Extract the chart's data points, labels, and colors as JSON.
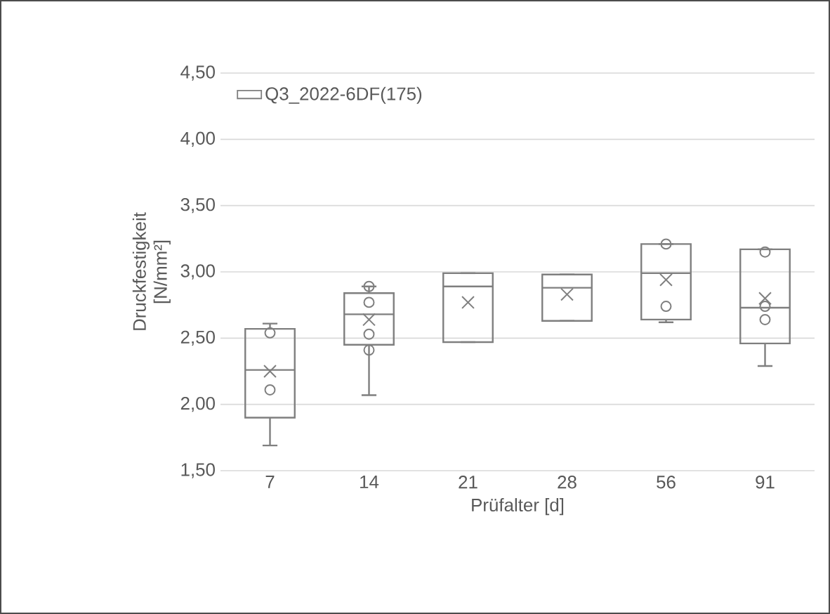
{
  "chart_data": {
    "type": "box",
    "xlabel": "Prüfalter [d]",
    "ylabel": "Druckfestigkeit [N/mm²]",
    "categories": [
      "7",
      "14",
      "21",
      "28",
      "56",
      "91"
    ],
    "series": [
      {
        "name": "Q3_2022-6DF(175)",
        "color": "#7f7f7f",
        "boxes": [
          {
            "low": 1.69,
            "q1": 1.9,
            "median": 2.26,
            "q3": 2.57,
            "high": 2.61,
            "mean": 2.25,
            "outliers": [
              2.54,
              2.11
            ]
          },
          {
            "low": 2.07,
            "q1": 2.45,
            "median": 2.68,
            "q3": 2.84,
            "high": 2.89,
            "mean": 2.64,
            "outliers": [
              2.89,
              2.77,
              2.53,
              2.41
            ]
          },
          {
            "low": 2.47,
            "q1": 2.47,
            "median": 2.89,
            "q3": 2.99,
            "high": 2.99,
            "mean": 2.77
          },
          {
            "low": 2.63,
            "q1": 2.63,
            "median": 2.88,
            "q3": 2.98,
            "high": 2.98,
            "mean": 2.83
          },
          {
            "low": 2.62,
            "q1": 2.64,
            "median": 2.99,
            "q3": 3.21,
            "high": 3.21,
            "mean": 2.94,
            "outliers": [
              3.21,
              2.74
            ]
          },
          {
            "low": 2.29,
            "q1": 2.46,
            "median": 2.73,
            "q3": 3.17,
            "high": 3.17,
            "mean": 2.8,
            "outliers": [
              3.15,
              2.74,
              2.64
            ]
          }
        ]
      }
    ],
    "ylim": [
      1.5,
      4.5
    ],
    "yticks": [
      {
        "value": 1.5,
        "label": "1,50"
      },
      {
        "value": 2.0,
        "label": "2,00"
      },
      {
        "value": 2.5,
        "label": "2,50"
      },
      {
        "value": 3.0,
        "label": "3,00"
      },
      {
        "value": 3.5,
        "label": "3,50"
      },
      {
        "value": 4.0,
        "label": "4,00"
      },
      {
        "value": 4.5,
        "label": "4,50"
      }
    ],
    "grid": "y",
    "legend": "top left"
  }
}
